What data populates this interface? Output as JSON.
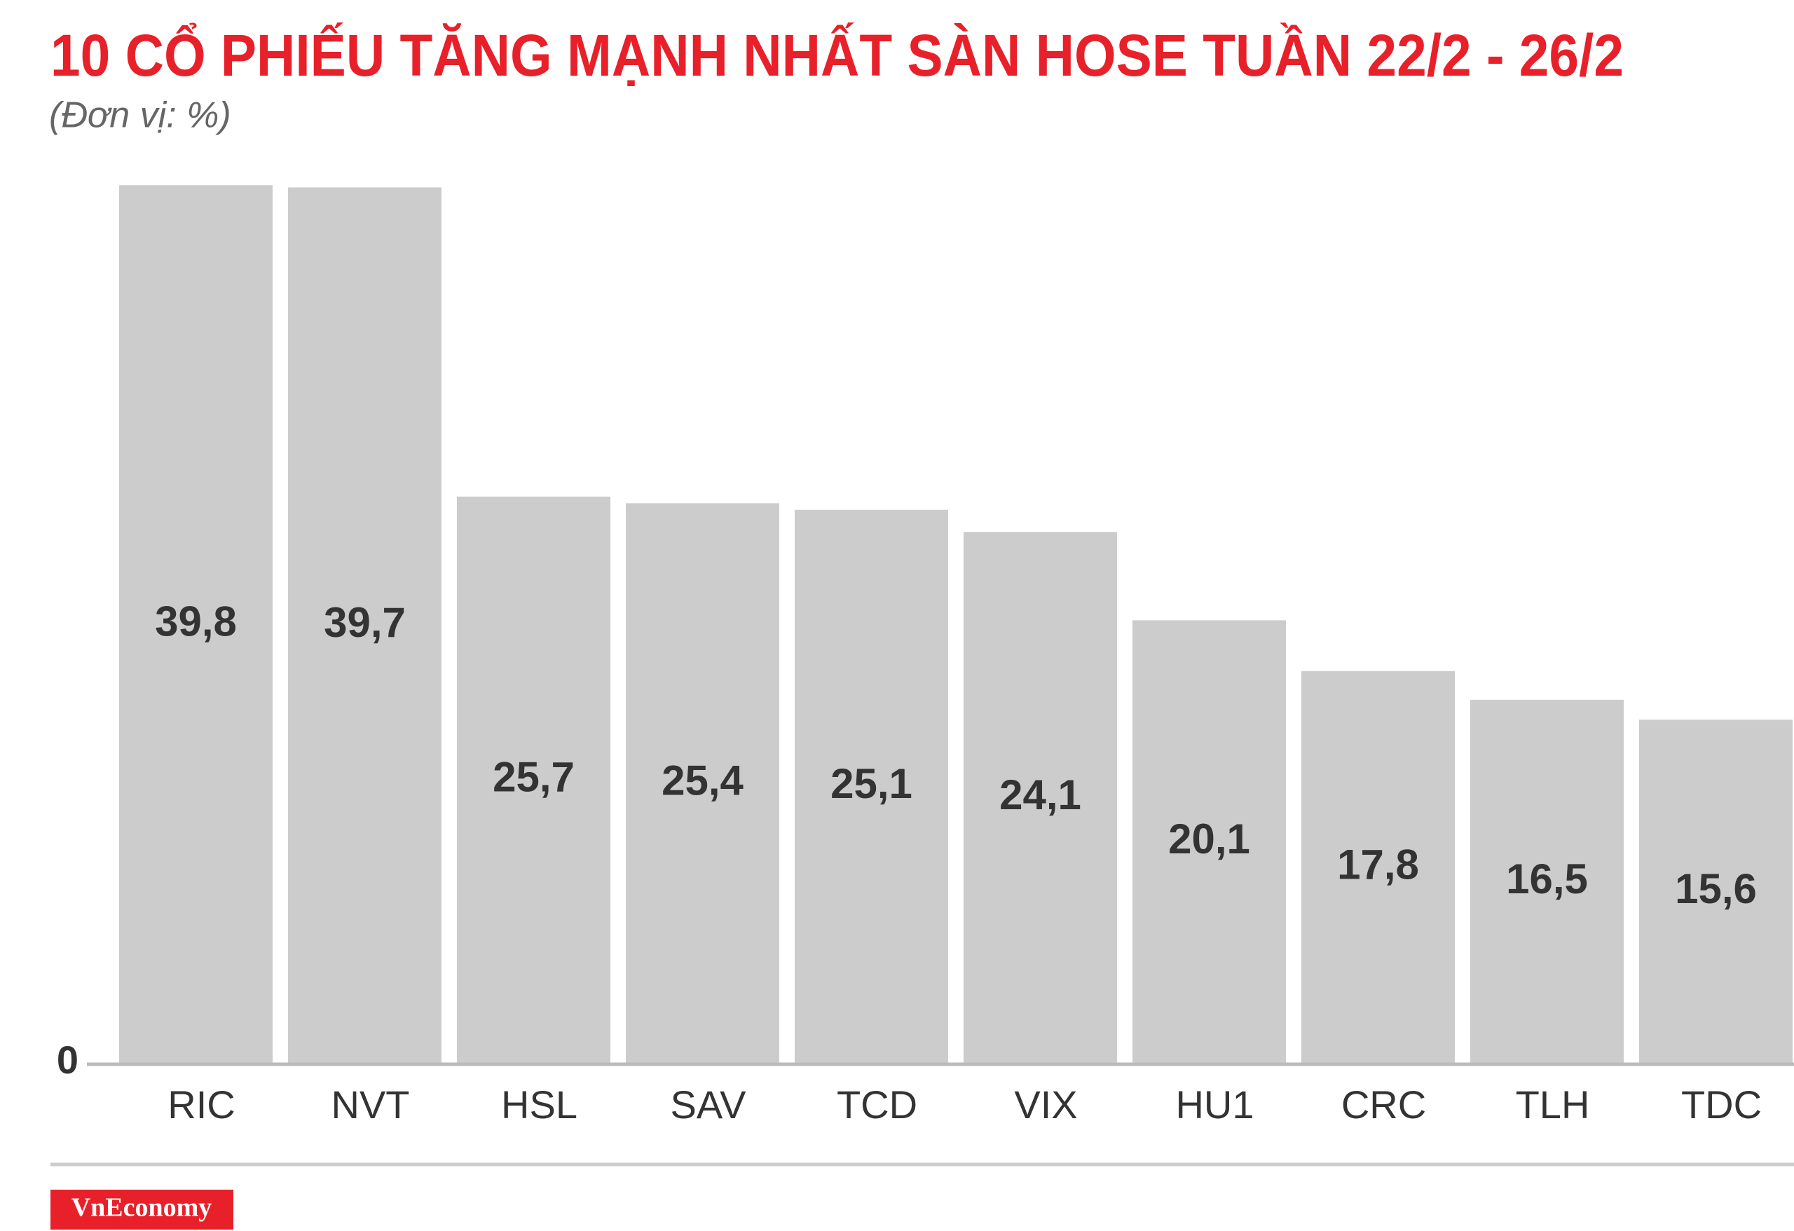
{
  "chart_data": {
    "type": "bar",
    "title": "10 CỔ PHIẾU TĂNG MẠNH NHẤT SÀN HOSE TUẦN 22/2 - 26/2",
    "subtitle": "(Đơn vị: %)",
    "categories": [
      "RIC",
      "NVT",
      "HSL",
      "SAV",
      "TCD",
      "VIX",
      "HU1",
      "CRC",
      "TLH",
      "TDC"
    ],
    "values": [
      39.8,
      39.7,
      25.7,
      25.4,
      25.1,
      24.1,
      20.1,
      17.8,
      16.5,
      15.6
    ],
    "value_labels": [
      "39,8",
      "39,7",
      "25,7",
      "25,4",
      "25,1",
      "24,1",
      "20,1",
      "17,8",
      "16,5",
      "15,6"
    ],
    "color": "#cccccc",
    "ylim": [
      0,
      40
    ],
    "yticks": [
      0
    ],
    "source": "VnEconomy"
  }
}
